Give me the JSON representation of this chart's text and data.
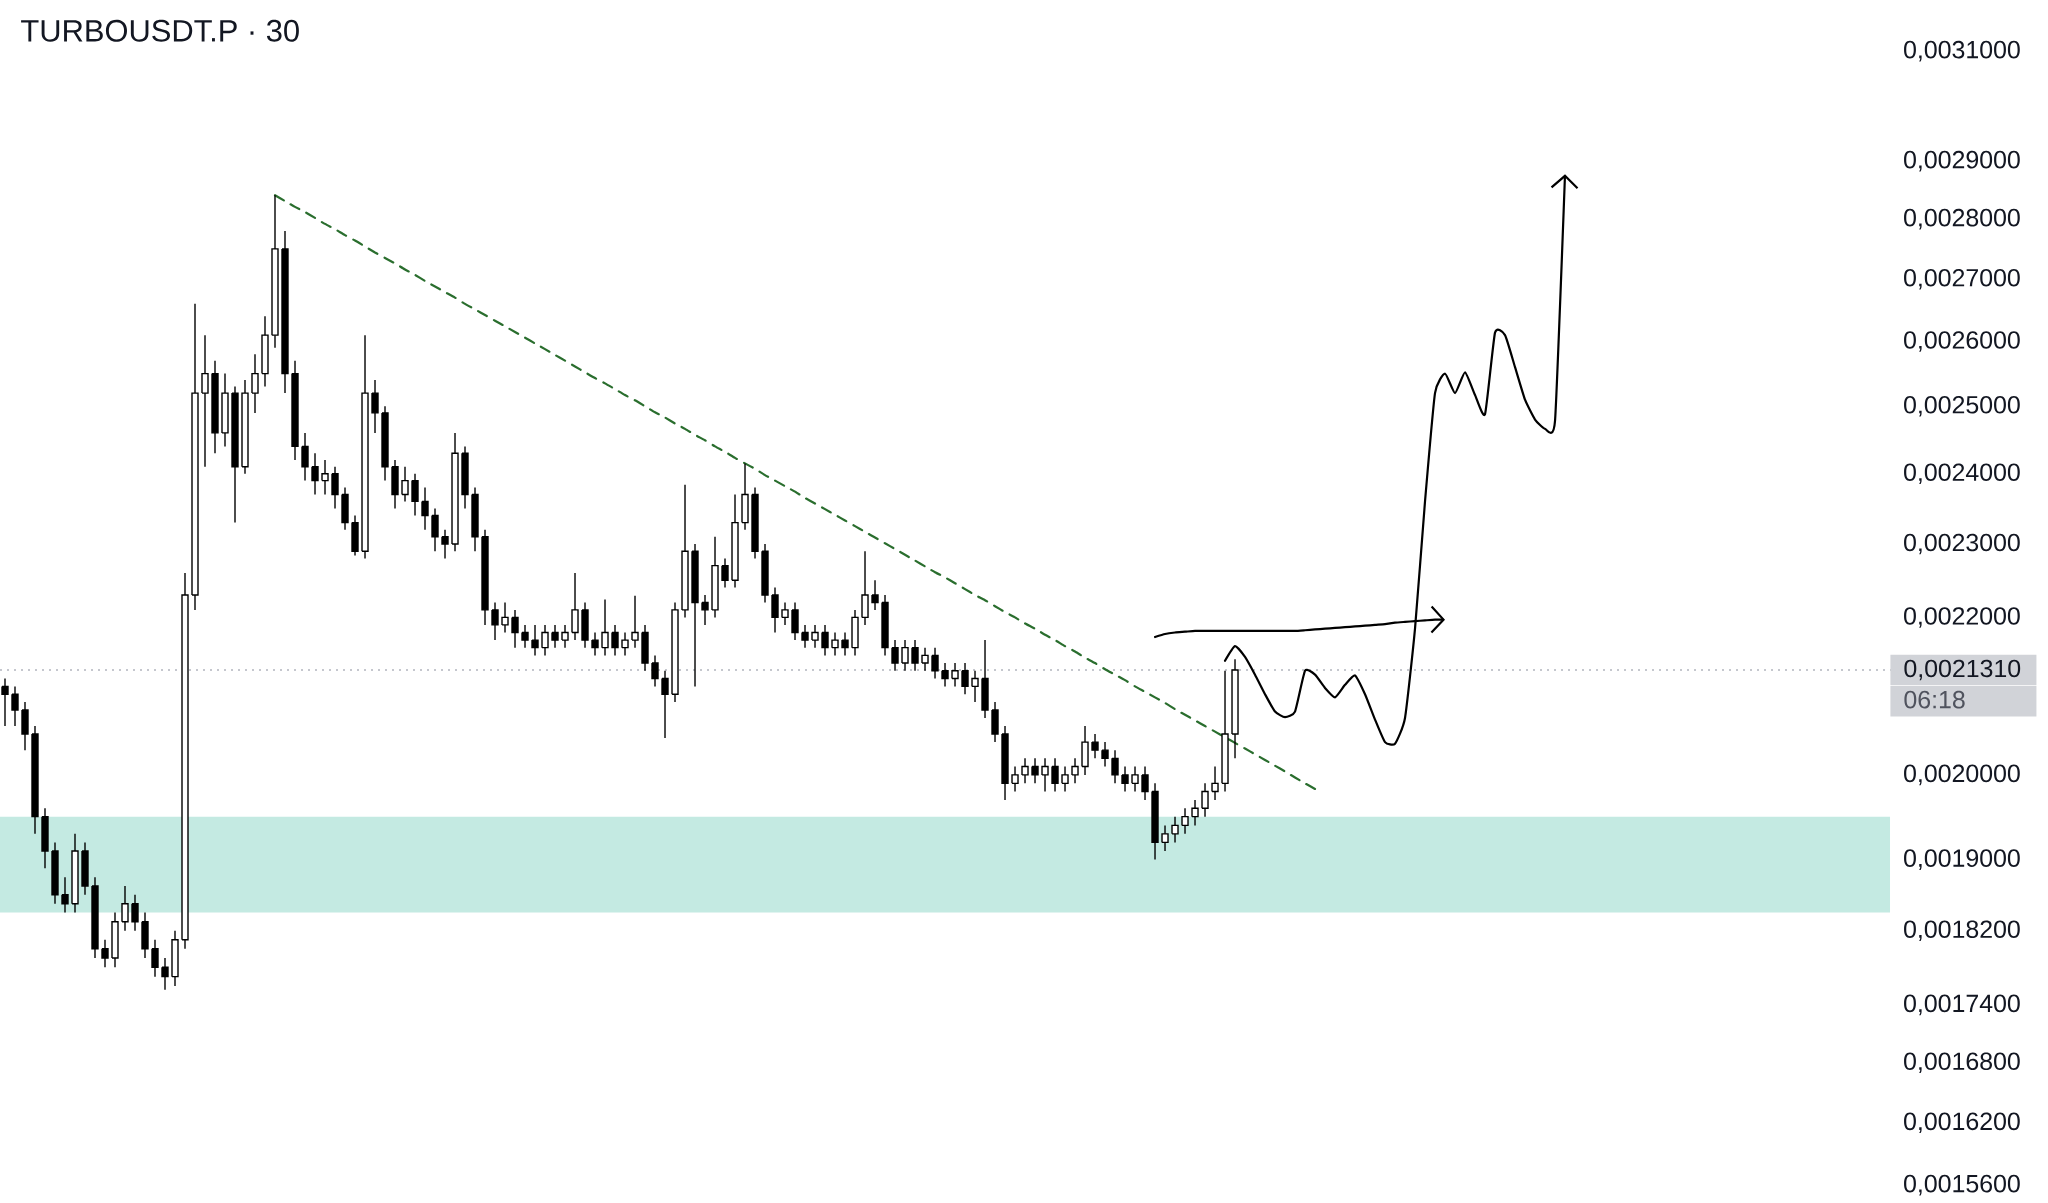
{
  "chart_data": {
    "type": "candlestick",
    "title": "TURBOUSDT.P · 30",
    "color": "#000000",
    "log": "y",
    "tick_labels": "y",
    "categories": [
      null,
      null,
      null,
      null,
      null,
      null,
      null,
      null,
      null,
      null,
      null,
      null,
      null,
      null,
      null,
      null,
      null,
      null,
      null,
      null,
      null,
      null,
      null,
      null,
      null,
      null,
      null,
      null,
      null,
      null,
      null,
      null,
      null,
      null,
      null,
      null,
      null,
      null,
      null,
      null,
      null,
      null,
      null,
      null,
      null,
      null,
      null,
      null,
      null,
      null,
      null,
      null,
      null,
      null,
      null,
      null,
      null,
      null,
      null,
      null,
      null,
      null,
      null,
      null,
      null,
      null,
      null,
      null,
      null,
      null,
      null,
      null,
      null,
      null,
      null,
      null,
      null,
      null,
      null,
      null,
      null,
      null,
      null,
      null,
      null,
      null,
      null,
      null,
      null,
      null,
      null,
      null,
      null,
      null,
      null,
      null,
      null,
      null,
      null,
      null,
      null,
      null,
      null,
      null,
      null,
      null,
      null,
      null,
      null,
      null,
      null,
      null,
      null,
      null,
      null,
      null,
      null,
      null,
      null,
      null,
      null,
      null,
      null,
      null,
      null,
      null,
      null,
      null,
      null,
      null,
      null,
      null,
      null,
      null,
      null,
      null,
      null,
      null,
      null,
      null,
      null,
      null,
      null,
      null,
      null,
      null,
      null,
      null,
      null,
      null,
      null,
      null,
      null,
      null,
      null,
      null,
      null,
      null,
      null,
      null,
      null,
      null,
      null,
      null,
      null,
      null,
      null,
      null,
      null,
      null,
      null,
      null,
      null,
      null,
      null,
      null,
      null,
      null,
      null,
      null,
      null,
      null,
      null,
      null,
      null,
      null,
      null,
      null,
      null
    ],
    "ohlc": [
      [
        0.00211,
        0.00212,
        0.00206,
        0.0021
      ],
      [
        0.0021,
        0.00211,
        0.00206,
        0.00208
      ],
      [
        0.00208,
        0.00209,
        0.00203,
        0.00205
      ],
      [
        0.00205,
        0.00206,
        0.00193,
        0.00195
      ],
      [
        0.00195,
        0.00196,
        0.00189,
        0.00191
      ],
      [
        0.00191,
        0.00192,
        0.00185,
        0.00186
      ],
      [
        0.00186,
        0.00188,
        0.00184,
        0.00185
      ],
      [
        0.00185,
        0.00193,
        0.00184,
        0.00191
      ],
      [
        0.00191,
        0.00192,
        0.00186,
        0.00187
      ],
      [
        0.00187,
        0.00188,
        0.00179,
        0.0018
      ],
      [
        0.0018,
        0.00181,
        0.00178,
        0.00179
      ],
      [
        0.00179,
        0.00184,
        0.00178,
        0.00183
      ],
      [
        0.00183,
        0.00187,
        0.00182,
        0.00185
      ],
      [
        0.00185,
        0.00186,
        0.00182,
        0.00183
      ],
      [
        0.00183,
        0.00184,
        0.00179,
        0.0018
      ],
      [
        0.0018,
        0.00181,
        0.00177,
        0.00178
      ],
      [
        0.00178,
        0.00179,
        0.001756,
        0.00177
      ],
      [
        0.00177,
        0.00182,
        0.00176,
        0.00181
      ],
      [
        0.00181,
        0.00226,
        0.0018,
        0.00223
      ],
      [
        0.00223,
        0.00266,
        0.00221,
        0.00252
      ],
      [
        0.00252,
        0.00261,
        0.00241,
        0.00255
      ],
      [
        0.00255,
        0.00257,
        0.00243,
        0.00246
      ],
      [
        0.00246,
        0.00255,
        0.00244,
        0.00252
      ],
      [
        0.00252,
        0.00253,
        0.00233,
        0.00241
      ],
      [
        0.00241,
        0.00254,
        0.0024,
        0.00252
      ],
      [
        0.00252,
        0.00258,
        0.00249,
        0.00255
      ],
      [
        0.00255,
        0.00264,
        0.00253,
        0.00261
      ],
      [
        0.00261,
        0.002841,
        0.00259,
        0.00275
      ],
      [
        0.00275,
        0.00278,
        0.00252,
        0.00255
      ],
      [
        0.00255,
        0.00257,
        0.00242,
        0.00244
      ],
      [
        0.00244,
        0.00246,
        0.00239,
        0.00241
      ],
      [
        0.00241,
        0.00243,
        0.00237,
        0.00239
      ],
      [
        0.00239,
        0.00242,
        0.00237,
        0.0024
      ],
      [
        0.0024,
        0.00241,
        0.00235,
        0.00237
      ],
      [
        0.00237,
        0.00238,
        0.00232,
        0.00233
      ],
      [
        0.00233,
        0.00234,
        0.002284,
        0.00229
      ],
      [
        0.00229,
        0.00261,
        0.00228,
        0.00252
      ],
      [
        0.00252,
        0.00254,
        0.00246,
        0.00249
      ],
      [
        0.00249,
        0.0025,
        0.00239,
        0.00241
      ],
      [
        0.00241,
        0.00242,
        0.00235,
        0.00237
      ],
      [
        0.00237,
        0.00241,
        0.00236,
        0.00239
      ],
      [
        0.00239,
        0.0024,
        0.00234,
        0.00236
      ],
      [
        0.00236,
        0.00238,
        0.00232,
        0.00234
      ],
      [
        0.00234,
        0.00235,
        0.00229,
        0.00231
      ],
      [
        0.00231,
        0.00232,
        0.00228,
        0.0023
      ],
      [
        0.0023,
        0.00246,
        0.00229,
        0.00243
      ],
      [
        0.00243,
        0.00244,
        0.00235,
        0.00237
      ],
      [
        0.00237,
        0.00238,
        0.00229,
        0.00231
      ],
      [
        0.00231,
        0.00232,
        0.00219,
        0.00221
      ],
      [
        0.00221,
        0.00222,
        0.00217,
        0.00219
      ],
      [
        0.00219,
        0.00222,
        0.00218,
        0.0022
      ],
      [
        0.0022,
        0.00221,
        0.00216,
        0.00218
      ],
      [
        0.00218,
        0.00219,
        0.00216,
        0.00217
      ],
      [
        0.00217,
        0.00219,
        0.00215,
        0.00216
      ],
      [
        0.00216,
        0.00219,
        0.00215,
        0.00218
      ],
      [
        0.00218,
        0.00219,
        0.00216,
        0.00217
      ],
      [
        0.00217,
        0.00219,
        0.00216,
        0.00218
      ],
      [
        0.00218,
        0.00226,
        0.00217,
        0.00221
      ],
      [
        0.00221,
        0.00222,
        0.00216,
        0.00217
      ],
      [
        0.00217,
        0.00218,
        0.00215,
        0.00216
      ],
      [
        0.00216,
        0.002224,
        0.00215,
        0.00218
      ],
      [
        0.00218,
        0.00219,
        0.00215,
        0.00216
      ],
      [
        0.00216,
        0.00218,
        0.00215,
        0.00217
      ],
      [
        0.00217,
        0.002229,
        0.00216,
        0.00218
      ],
      [
        0.00218,
        0.00219,
        0.00213,
        0.00214
      ],
      [
        0.00214,
        0.00215,
        0.00211,
        0.00212
      ],
      [
        0.00212,
        0.00213,
        0.002045,
        0.0021
      ],
      [
        0.0021,
        0.00222,
        0.00209,
        0.00221
      ],
      [
        0.00221,
        0.002384,
        0.0022,
        0.00229
      ],
      [
        0.00229,
        0.0023,
        0.00211,
        0.00222
      ],
      [
        0.00222,
        0.00223,
        0.00219,
        0.00221
      ],
      [
        0.00221,
        0.00231,
        0.0022,
        0.00227
      ],
      [
        0.00227,
        0.00228,
        0.00224,
        0.00225
      ],
      [
        0.00225,
        0.00237,
        0.00224,
        0.00233
      ],
      [
        0.00233,
        0.002415,
        0.00232,
        0.00237
      ],
      [
        0.00237,
        0.00238,
        0.00228,
        0.00229
      ],
      [
        0.00229,
        0.0023,
        0.00222,
        0.00223
      ],
      [
        0.00223,
        0.00224,
        0.00218,
        0.0022
      ],
      [
        0.0022,
        0.00222,
        0.00219,
        0.00221
      ],
      [
        0.00221,
        0.00222,
        0.00217,
        0.00218
      ],
      [
        0.00218,
        0.00219,
        0.00216,
        0.00217
      ],
      [
        0.00217,
        0.00219,
        0.00216,
        0.00218
      ],
      [
        0.00218,
        0.00219,
        0.00215,
        0.00216
      ],
      [
        0.00216,
        0.00218,
        0.00215,
        0.00217
      ],
      [
        0.00217,
        0.00218,
        0.00215,
        0.00216
      ],
      [
        0.00216,
        0.00221,
        0.00215,
        0.0022
      ],
      [
        0.0022,
        0.00229,
        0.00219,
        0.00223
      ],
      [
        0.00223,
        0.00225,
        0.00221,
        0.00222
      ],
      [
        0.00222,
        0.00223,
        0.00215,
        0.00216
      ],
      [
        0.00216,
        0.00217,
        0.00213,
        0.00214
      ],
      [
        0.00214,
        0.00217,
        0.00213,
        0.00216
      ],
      [
        0.00216,
        0.00217,
        0.00213,
        0.00214
      ],
      [
        0.00214,
        0.00216,
        0.00213,
        0.00215
      ],
      [
        0.00215,
        0.00216,
        0.00212,
        0.00213
      ],
      [
        0.00213,
        0.00214,
        0.00211,
        0.00212
      ],
      [
        0.00212,
        0.00214,
        0.00211,
        0.00213
      ],
      [
        0.00213,
        0.00214,
        0.0021,
        0.00211
      ],
      [
        0.00211,
        0.00213,
        0.00209,
        0.00212
      ],
      [
        0.00212,
        0.00217,
        0.00207,
        0.00208
      ],
      [
        0.00208,
        0.00209,
        0.00204,
        0.00205
      ],
      [
        0.00205,
        0.00206,
        0.00197,
        0.00199
      ],
      [
        0.00199,
        0.00201,
        0.00198,
        0.002
      ],
      [
        0.002,
        0.00202,
        0.00199,
        0.00201
      ],
      [
        0.00201,
        0.00202,
        0.00199,
        0.002
      ],
      [
        0.002,
        0.00202,
        0.00198,
        0.00201
      ],
      [
        0.00201,
        0.00202,
        0.00198,
        0.00199
      ],
      [
        0.00199,
        0.00201,
        0.00198,
        0.002
      ],
      [
        0.002,
        0.00202,
        0.00199,
        0.00201
      ],
      [
        0.00201,
        0.00206,
        0.002,
        0.00204
      ],
      [
        0.00204,
        0.00205,
        0.00202,
        0.00203
      ],
      [
        0.00203,
        0.00204,
        0.00201,
        0.00202
      ],
      [
        0.00202,
        0.00203,
        0.00199,
        0.002
      ],
      [
        0.002,
        0.00201,
        0.00198,
        0.00199
      ],
      [
        0.00199,
        0.00201,
        0.00198,
        0.002
      ],
      [
        0.002,
        0.00201,
        0.00197,
        0.00198
      ],
      [
        0.00198,
        0.00199,
        0.0019,
        0.00192
      ],
      [
        0.00192,
        0.00194,
        0.00191,
        0.00193
      ],
      [
        0.00193,
        0.00195,
        0.00192,
        0.00194
      ],
      [
        0.00194,
        0.00196,
        0.00193,
        0.00195
      ],
      [
        0.00195,
        0.00197,
        0.00194,
        0.00196
      ],
      [
        0.00196,
        0.00199,
        0.00195,
        0.00198
      ],
      [
        0.00198,
        0.00201,
        0.00197,
        0.00199
      ],
      [
        0.00199,
        0.00213,
        0.00198,
        0.00205
      ],
      [
        0.00205,
        0.002145,
        0.00202,
        0.002131
      ],
      null,
      null,
      null,
      null,
      null,
      null,
      null,
      null,
      null,
      null,
      null,
      null,
      null,
      null,
      null,
      null,
      null,
      null,
      null,
      null,
      null,
      null,
      null,
      null,
      null,
      null,
      null,
      null,
      null,
      null,
      null,
      null,
      null,
      null,
      null,
      null,
      null,
      null,
      null,
      null,
      null,
      null,
      null,
      null,
      null,
      null,
      null,
      null,
      null,
      null,
      null,
      null,
      null,
      null,
      null,
      null,
      null,
      null,
      null,
      null,
      null,
      null,
      null,
      null,
      null
    ],
    "series": [
      {
        "type": "line",
        "color": "#2a6e2e",
        "line_style": "dashed",
        "values": [
          null,
          null,
          null,
          null,
          null,
          null,
          null,
          null,
          null,
          null,
          null,
          null,
          null,
          null,
          null,
          null,
          null,
          null,
          null,
          null,
          null,
          null,
          null,
          null,
          null,
          null,
          null,
          0.002841,
          0.002831,
          0.002821,
          0.002812,
          0.002802,
          0.002792,
          0.002783,
          0.002773,
          0.002764,
          0.002754,
          0.002744,
          0.002735,
          0.002726,
          0.002716,
          0.002707,
          0.002697,
          0.002688,
          0.002679,
          0.00267,
          0.00266,
          0.002651,
          0.002642,
          0.002633,
          0.002624,
          0.002615,
          0.002606,
          0.002597,
          0.002588,
          0.002579,
          0.00257,
          0.002561,
          0.002552,
          0.002543,
          0.002535,
          0.002526,
          0.002517,
          0.002509,
          0.0025,
          0.002491,
          0.002483,
          0.002474,
          0.002466,
          0.002457,
          0.002449,
          0.00244,
          0.002432,
          0.002423,
          0.002415,
          0.002407,
          0.002398,
          0.00239,
          0.002382,
          0.002374,
          0.002365,
          0.002357,
          0.002349,
          0.002341,
          0.002333,
          0.002325,
          0.002317,
          0.002309,
          0.002301,
          0.002293,
          0.002285,
          0.002277,
          0.002269,
          0.002261,
          0.002254,
          0.002246,
          0.002238,
          0.00223,
          0.002223,
          0.002215,
          0.002207,
          0.0022,
          0.002192,
          0.002185,
          0.002177,
          0.00217,
          0.002162,
          0.002155,
          0.002147,
          0.00214,
          0.002132,
          0.002125,
          0.002118,
          0.00211,
          0.002103,
          0.002096,
          0.002089,
          0.002081,
          0.002074,
          0.002067,
          0.00206,
          0.002053,
          0.002046,
          0.002039,
          0.002032,
          0.002025,
          0.002018,
          0.002011,
          0.002004,
          0.001997,
          0.00199,
          0.001983,
          null,
          null,
          null,
          null,
          null,
          null,
          null,
          null,
          null,
          null,
          null,
          null,
          null,
          null,
          null,
          null,
          null,
          null,
          null,
          null,
          null,
          null,
          null,
          null,
          null,
          null,
          null,
          null,
          null,
          null,
          null,
          null,
          null,
          null,
          null,
          null,
          null,
          null,
          null,
          null,
          null,
          null,
          null,
          null,
          null,
          null,
          null,
          null,
          null,
          null,
          null,
          null,
          null,
          null,
          null,
          null,
          null
        ]
      },
      {
        "type": "line",
        "color": "#000000",
        "line_style": "solid",
        "values": [
          null,
          null,
          null,
          null,
          null,
          null,
          null,
          null,
          null,
          null,
          null,
          null,
          null,
          null,
          null,
          null,
          null,
          null,
          null,
          null,
          null,
          null,
          null,
          null,
          null,
          null,
          null,
          null,
          null,
          null,
          null,
          null,
          null,
          null,
          null,
          null,
          null,
          null,
          null,
          null,
          null,
          null,
          null,
          null,
          null,
          null,
          null,
          null,
          null,
          null,
          null,
          null,
          null,
          null,
          null,
          null,
          null,
          null,
          null,
          null,
          null,
          null,
          null,
          null,
          null,
          null,
          null,
          null,
          null,
          null,
          null,
          null,
          null,
          null,
          null,
          null,
          null,
          null,
          null,
          null,
          null,
          null,
          null,
          null,
          null,
          null,
          null,
          null,
          null,
          null,
          null,
          null,
          null,
          null,
          null,
          null,
          null,
          null,
          null,
          null,
          null,
          null,
          null,
          null,
          null,
          null,
          null,
          null,
          null,
          null,
          null,
          null,
          null,
          null,
          null,
          0.002174,
          0.002178,
          0.00218,
          0.002181,
          0.002182,
          0.002182,
          0.002182,
          0.002182,
          0.002182,
          0.002182,
          0.002182,
          0.002182,
          0.002182,
          0.002182,
          0.002182,
          0.002183,
          0.002184,
          0.002185,
          0.002186,
          0.002187,
          0.002188,
          0.002189,
          0.00219,
          0.002191,
          0.002193,
          0.002194,
          0.002195,
          0.002196,
          0.002197,
          0.002197,
          null,
          null,
          null,
          null,
          null,
          null,
          null,
          null,
          null,
          null,
          null,
          null,
          null,
          null,
          null,
          null,
          null,
          null,
          null,
          null,
          null,
          null,
          null,
          null,
          null,
          null,
          null,
          null,
          null,
          null,
          null,
          null,
          null,
          null,
          null,
          null,
          null,
          null,
          null,
          null,
          null,
          null,
          null,
          null
        ]
      },
      {
        "type": "line",
        "color": "#000000",
        "line_style": "solid",
        "values": [
          null,
          null,
          null,
          null,
          null,
          null,
          null,
          null,
          null,
          null,
          null,
          null,
          null,
          null,
          null,
          null,
          null,
          null,
          null,
          null,
          null,
          null,
          null,
          null,
          null,
          null,
          null,
          null,
          null,
          null,
          null,
          null,
          null,
          null,
          null,
          null,
          null,
          null,
          null,
          null,
          null,
          null,
          null,
          null,
          null,
          null,
          null,
          null,
          null,
          null,
          null,
          null,
          null,
          null,
          null,
          null,
          null,
          null,
          null,
          null,
          null,
          null,
          null,
          null,
          null,
          null,
          null,
          null,
          null,
          null,
          null,
          null,
          null,
          null,
          null,
          null,
          null,
          null,
          null,
          null,
          null,
          null,
          null,
          null,
          null,
          null,
          null,
          null,
          null,
          null,
          null,
          null,
          null,
          null,
          null,
          null,
          null,
          null,
          null,
          null,
          null,
          null,
          null,
          null,
          null,
          null,
          null,
          null,
          null,
          null,
          null,
          null,
          null,
          null,
          null,
          null,
          null,
          null,
          null,
          null,
          null,
          null,
          0.002143,
          0.002162,
          0.002148,
          0.002125,
          0.0021,
          0.002078,
          0.002071,
          0.002078,
          0.00213,
          0.002125,
          0.002108,
          0.002096,
          0.002112,
          0.002124,
          0.0021,
          0.002068,
          0.00204,
          0.002038,
          0.00207,
          0.002185,
          0.00236,
          0.00252,
          0.00255,
          0.00252,
          0.002552,
          0.002517,
          0.002488,
          0.002614,
          0.00261,
          0.00256,
          0.00251,
          0.00248,
          0.002466,
          0.002478,
          0.002877,
          null,
          null,
          null,
          null,
          null,
          null,
          null,
          null,
          null,
          null,
          null,
          null,
          null,
          null,
          null,
          null,
          null,
          null,
          null,
          null,
          null,
          null,
          null,
          null,
          null,
          null,
          null,
          null,
          null,
          null,
          null,
          null
        ]
      }
    ],
    "bands": [
      {
        "axis": "y",
        "from": 0.00184,
        "to": 0.00195,
        "color": "#c4eae2"
      }
    ],
    "ref_lines": [
      {
        "axis": "y",
        "value": 0.002131,
        "label": "0,0021310",
        "color": "#b2b5be",
        "line_style": "dotted"
      }
    ],
    "annotations": [
      "06:18"
    ],
    "ylim": [
      0.00156,
      0.0031
    ],
    "yticks": [
      {
        "value": 0.0031,
        "label": "0,0031000"
      },
      {
        "value": 0.0029,
        "label": "0,0029000"
      },
      {
        "value": 0.0028,
        "label": "0,0028000"
      },
      {
        "value": 0.0027,
        "label": "0,0027000"
      },
      {
        "value": 0.0026,
        "label": "0,0026000"
      },
      {
        "value": 0.0025,
        "label": "0,0025000"
      },
      {
        "value": 0.0024,
        "label": "0,0024000"
      },
      {
        "value": 0.0023,
        "label": "0,0023000"
      },
      {
        "value": 0.0022,
        "label": "0,0022000"
      },
      {
        "value": 0.002,
        "label": "0,0020000"
      },
      {
        "value": 0.0019,
        "label": "0,0019000"
      },
      {
        "value": 0.00182,
        "label": "0,0018200"
      },
      {
        "value": 0.00174,
        "label": "0,0017400"
      },
      {
        "value": 0.00168,
        "label": "0,0016800"
      },
      {
        "value": 0.00162,
        "label": "0,0016200"
      },
      {
        "value": 0.00156,
        "label": "0,0015600"
      }
    ]
  }
}
